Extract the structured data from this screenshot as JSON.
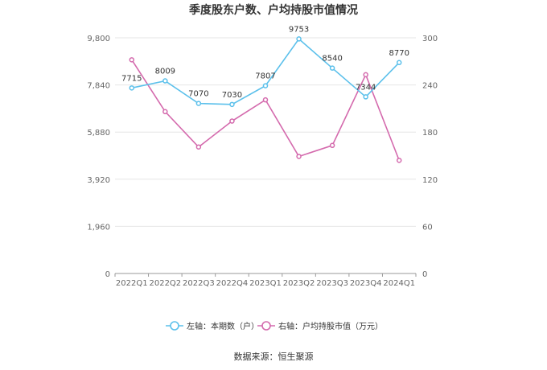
{
  "chart_data": {
    "type": "line",
    "title": "季度股东户数、户均持股市值情况",
    "categories": [
      "2022Q1",
      "2022Q2",
      "2022Q3",
      "2022Q4",
      "2023Q1",
      "2023Q2",
      "2023Q3",
      "2023Q4",
      "2024Q1"
    ],
    "left_axis": {
      "ylim": [
        0,
        9800
      ],
      "ticks": [
        "0",
        "1,960",
        "3,920",
        "5,880",
        "7,840",
        "9,800"
      ]
    },
    "right_axis": {
      "ylim": [
        0,
        300
      ],
      "ticks": [
        "0",
        "60",
        "120",
        "180",
        "240",
        "300"
      ]
    },
    "series": [
      {
        "name": "左轴：本期数（户）",
        "axis": "left",
        "color": "#5bc0eb",
        "values": [
          7715,
          8009,
          7070,
          7030,
          7807,
          9753,
          8540,
          7344,
          8770
        ],
        "labels": [
          "7715",
          "8009",
          "7070",
          "7030",
          "7807",
          "9753",
          "8540",
          "7344",
          "8770"
        ]
      },
      {
        "name": "右轴：户均持股市值（万元）",
        "axis": "right",
        "color": "#d46aad",
        "values": [
          272,
          206,
          161,
          194,
          221,
          149,
          163,
          253,
          144
        ]
      }
    ],
    "grid": true,
    "legend_position": "bottom"
  },
  "source": "数据来源：恒生聚源"
}
